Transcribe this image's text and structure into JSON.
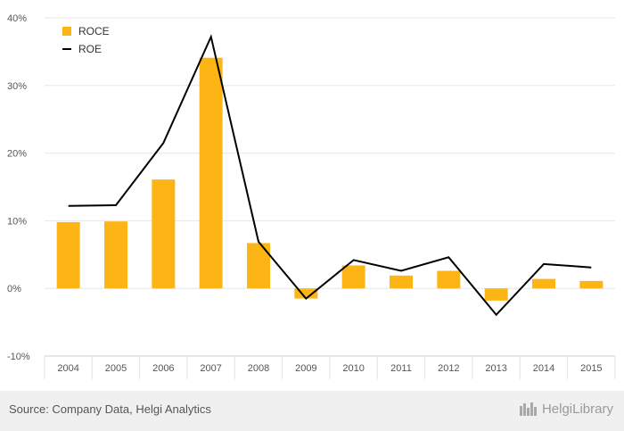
{
  "chart_data": {
    "type": "bar",
    "categories": [
      "2004",
      "2005",
      "2006",
      "2007",
      "2008",
      "2009",
      "2010",
      "2011",
      "2012",
      "2013",
      "2014",
      "2015"
    ],
    "series": [
      {
        "name": "ROCE",
        "kind": "bar",
        "color": "#FDB515",
        "values": [
          9.8,
          9.9,
          16.1,
          34.1,
          6.7,
          -1.5,
          3.4,
          1.9,
          2.6,
          -1.8,
          1.4,
          1.1
        ]
      },
      {
        "name": "ROE",
        "kind": "line",
        "color": "#000000",
        "values": [
          12.2,
          12.3,
          21.5,
          37.2,
          6.9,
          -1.5,
          4.2,
          2.6,
          4.6,
          -3.9,
          3.6,
          3.1
        ]
      }
    ],
    "ylim": [
      -10,
      40
    ],
    "yticks": [
      "-10%",
      "0%",
      "10%",
      "20%",
      "30%",
      "40%"
    ],
    "ytick_values": [
      -10,
      0,
      10,
      20,
      30,
      40
    ],
    "grid": true,
    "legend": "top-left"
  },
  "footer": {
    "source": "Source: Company Data, Helgi Analytics",
    "brand": "HelgiLibrary"
  }
}
